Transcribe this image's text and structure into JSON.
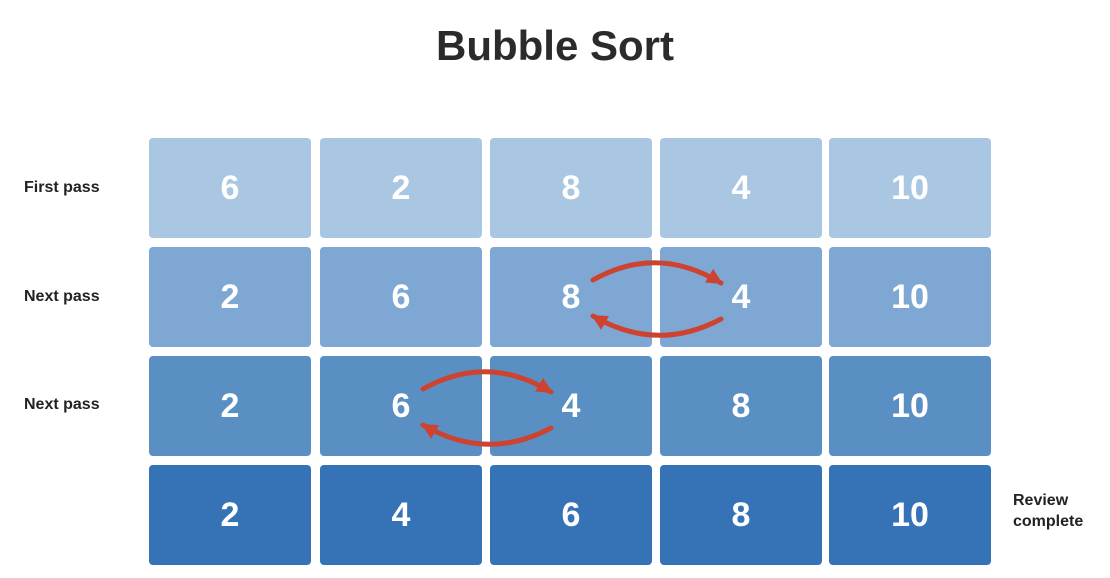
{
  "title": "Bubble Sort",
  "colors": {
    "pass_fills": [
      "#a9c6e2",
      "#7ea8d3",
      "#5a8fc4",
      "#3573b6"
    ],
    "swap_arrow": "#cd4330"
  },
  "passes": [
    {
      "label": "First pass",
      "values": [
        "6",
        "2",
        "8",
        "4",
        "10"
      ],
      "swap": null
    },
    {
      "label": "Next pass",
      "values": [
        "2",
        "6",
        "8",
        "4",
        "10"
      ],
      "swap": [
        2,
        3
      ]
    },
    {
      "label": "Next pass",
      "values": [
        "2",
        "6",
        "4",
        "8",
        "10"
      ],
      "swap": [
        1,
        2
      ]
    },
    {
      "label": "",
      "values": [
        "2",
        "4",
        "6",
        "8",
        "10"
      ],
      "swap": null
    }
  ],
  "end_label": {
    "line1": "Review",
    "line2": "complete"
  }
}
